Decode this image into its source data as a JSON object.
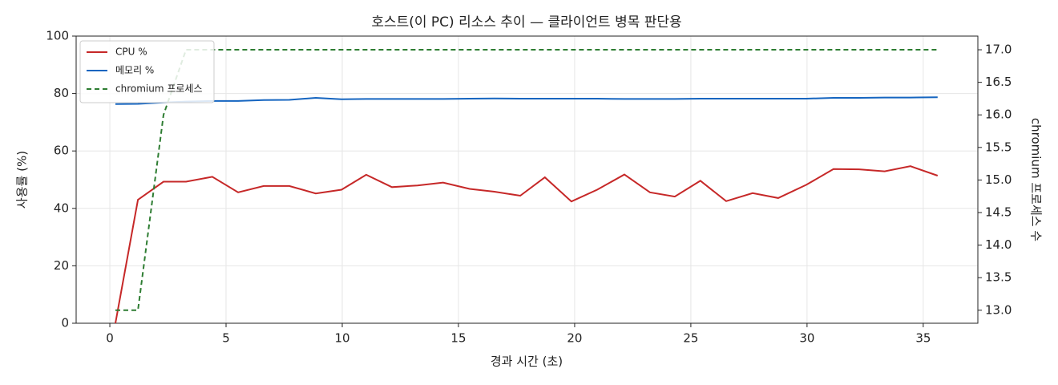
{
  "chart_data": {
    "type": "line",
    "title": "호스트(이 PC) 리소스 추이 — 클라이언트 병목 판단용",
    "xlabel": "경과 시간 (초)",
    "ylabel": "사용률 (%)",
    "y2label": "chromium 프로세스 수",
    "x": [
      0.24,
      1.21,
      2.31,
      3.28,
      4.41,
      5.52,
      6.62,
      7.72,
      8.86,
      9.97,
      11.03,
      12.14,
      13.24,
      14.34,
      15.48,
      16.55,
      17.66,
      18.72,
      19.86,
      20.97,
      22.14,
      23.24,
      24.31,
      25.41,
      26.52,
      27.66,
      28.76,
      29.97,
      31.14,
      32.24,
      33.34,
      34.45,
      35.62
    ],
    "series": [
      {
        "name": "CPU %",
        "color": "#c62828",
        "dash": false,
        "values": [
          0,
          43,
          49.3,
          49.3,
          51,
          45.6,
          47.8,
          47.8,
          45.2,
          46.5,
          51.7,
          47.4,
          48,
          49,
          46.8,
          45.8,
          44.4,
          50.8,
          42.4,
          46.5,
          51.8,
          45.6,
          44.1,
          49.6,
          42.5,
          45.3,
          43.6,
          48.2,
          53.7,
          53.6,
          52.9,
          54.7,
          51.4
        ]
      },
      {
        "name": "메모리 %",
        "color": "#1565c0",
        "dash": false,
        "values": [
          76.3,
          76.4,
          76.9,
          77.2,
          77.4,
          77.4,
          77.7,
          77.8,
          78.5,
          78.0,
          78.1,
          78.1,
          78.1,
          78.1,
          78.2,
          78.3,
          78.2,
          78.2,
          78.2,
          78.2,
          78.1,
          78.1,
          78.1,
          78.2,
          78.2,
          78.2,
          78.2,
          78.2,
          78.5,
          78.5,
          78.6,
          78.6,
          78.7
        ]
      },
      {
        "name": "chromium 프로세스",
        "color": "#2e7d32",
        "dash": true,
        "axis": "y2",
        "values": [
          13,
          13,
          16,
          17,
          17,
          17,
          17,
          17,
          17,
          17,
          17,
          17,
          17,
          17,
          17,
          17,
          17,
          17,
          17,
          17,
          17,
          17,
          17,
          17,
          17,
          17,
          17,
          17,
          17,
          17,
          17,
          17,
          17
        ]
      }
    ],
    "xlim": [
      -1.45,
      37.35
    ],
    "xticks": [
      0,
      5,
      10,
      15,
      20,
      25,
      30,
      35
    ],
    "ylim": [
      0,
      100
    ],
    "yticks": [
      0,
      20,
      40,
      60,
      80,
      100
    ],
    "y2lim": [
      12.8,
      17.21
    ],
    "y2ticks": [
      {
        "value": 13,
        "label": "13.0"
      },
      {
        "value": 13.5,
        "label": "13.5"
      },
      {
        "value": 14,
        "label": "14.0"
      },
      {
        "value": 14.5,
        "label": "14.5"
      },
      {
        "value": 15,
        "label": "15.0"
      },
      {
        "value": 15.5,
        "label": "15.5"
      },
      {
        "value": 16,
        "label": "16.0"
      },
      {
        "value": 16.5,
        "label": "16.5"
      },
      {
        "value": 17,
        "label": "17.0"
      }
    ],
    "grid": true,
    "legend": "upper-left"
  }
}
